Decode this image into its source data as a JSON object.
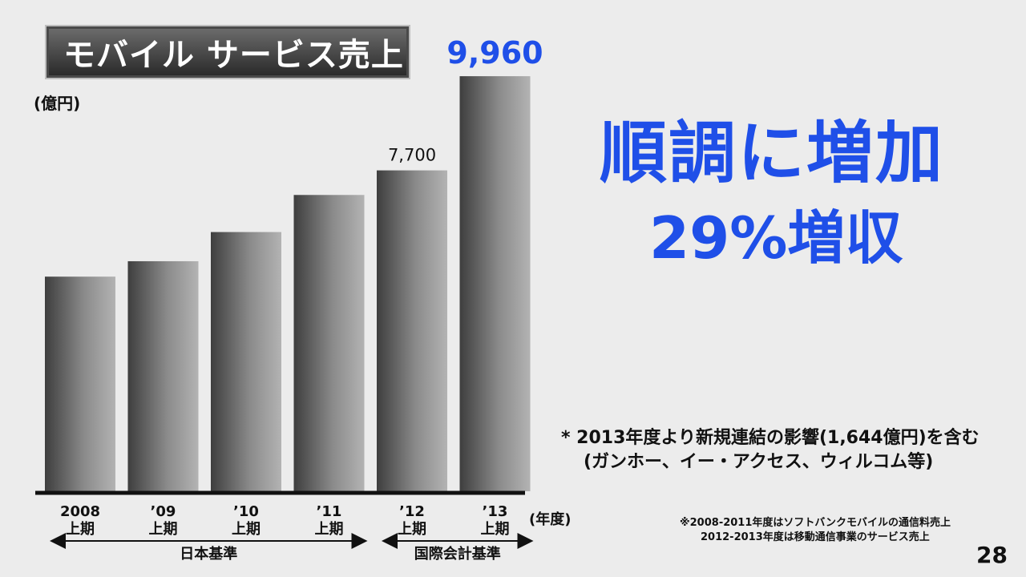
{
  "slide": {
    "title": "モバイル サービス売上",
    "unit_label": "(億円)",
    "headline": "順調に増加",
    "subheadline": "29%増収",
    "note_line1": "* 2013年度より新規連結の影響(1,644億円)を含む",
    "note_line2": "(ガンホー、イー・アクセス、ウィルコム等)",
    "year_unit": "(年度)",
    "footnote_line1": "※2008-2011年度はソフトバンクモバイルの通信料売上",
    "footnote_line2": "2012-2013年度は移動通信事業のサービス売上",
    "page_number": "28"
  },
  "chart_data": {
    "type": "bar",
    "categories": [
      "2008\n上期",
      "’09\n上期",
      "’10\n上期",
      "’11\n上期",
      "’12\n上期",
      "’13\n上期"
    ],
    "values": [
      5150,
      5520,
      6220,
      7110,
      7700,
      9960
    ],
    "data_labels": [
      "",
      "",
      "",
      "",
      "7,700",
      "9,960"
    ],
    "ylim": [
      0,
      10000
    ],
    "grid": false,
    "groups": [
      {
        "label": "日本基準",
        "from": 0,
        "to": 3
      },
      {
        "label": "国際会計基準",
        "from": 4,
        "to": 5
      }
    ],
    "highlight_color": "#1f4fe8"
  }
}
